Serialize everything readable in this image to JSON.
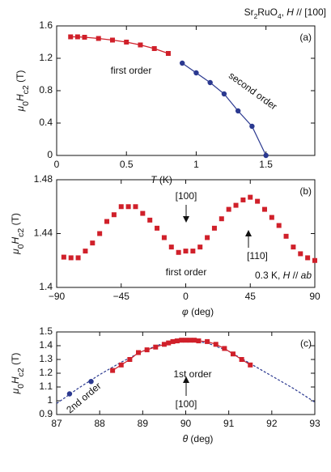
{
  "chart_data": [
    {
      "type": "line",
      "title": [
        "Sr",
        "2",
        "RuO",
        "4",
        ", ",
        "H",
        " // [100]"
      ],
      "panel_label": "(a)",
      "xlabel": [
        "T",
        " (K)"
      ],
      "ylabel": [
        "μ",
        "0",
        "H",
        "c2",
        " (T)"
      ],
      "xlim": [
        0,
        1.85
      ],
      "xticks": [
        0,
        0.5,
        1,
        1.5
      ],
      "ylim": [
        0,
        1.6
      ],
      "yticks": [
        0,
        0.4,
        0.8,
        1.2,
        1.6
      ],
      "series": [
        {
          "name": "first order",
          "color": "#d0202a",
          "marker": "square",
          "line": "solid",
          "x": [
            0.1,
            0.15,
            0.2,
            0.3,
            0.4,
            0.5,
            0.6,
            0.7,
            0.8
          ],
          "values": [
            1.465,
            1.465,
            1.46,
            1.445,
            1.425,
            1.4,
            1.365,
            1.32,
            1.26
          ]
        },
        {
          "name": "second order",
          "color": "#2b3990",
          "marker": "circle",
          "line": "solid",
          "x": [
            0.9,
            1.0,
            1.1,
            1.2,
            1.3,
            1.4,
            1.5
          ],
          "values": [
            1.14,
            1.02,
            0.9,
            0.76,
            0.55,
            0.36,
            0
          ]
        }
      ],
      "annotations": []
    },
    {
      "type": "scatter",
      "panel_label": "(b)",
      "xlabel": [
        "φ",
        " (deg)"
      ],
      "ylabel": [
        "μ",
        "0",
        "H",
        "c2",
        " (T)"
      ],
      "xlim": [
        -90,
        90
      ],
      "xticks": [
        {
          "value": -90,
          "label": "−90"
        },
        {
          "value": -45,
          "label": "−45"
        },
        0,
        45,
        90
      ],
      "ylim": [
        1.4,
        1.48
      ],
      "yticks": [
        1.4,
        1.44,
        1.48
      ],
      "series": [
        {
          "color": "#d0202a",
          "marker": "square",
          "line": "none",
          "x": [
            -85,
            -80,
            -75,
            -70,
            -65,
            -60,
            -55,
            -50,
            -45,
            -40,
            -35,
            -30,
            -25,
            -20,
            -15,
            -10,
            -5,
            0,
            5,
            10,
            15,
            20,
            25,
            30,
            35,
            40,
            45,
            50,
            55,
            60,
            65,
            70,
            75,
            80,
            85,
            90
          ],
          "values": [
            1.4225,
            1.422,
            1.422,
            1.427,
            1.433,
            1.44,
            1.449,
            1.454,
            1.46,
            1.46,
            1.46,
            1.455,
            1.45,
            1.444,
            1.437,
            1.43,
            1.426,
            1.427,
            1.427,
            1.43,
            1.437,
            1.444,
            1.451,
            1.458,
            1.461,
            1.465,
            1.467,
            1.464,
            1.458,
            1.452,
            1.446,
            1.438,
            1.43,
            1.425,
            1.422,
            1.42
          ]
        }
      ],
      "annotations": [
        [
          "[100]"
        ],
        [
          "[110]"
        ],
        [
          "first order"
        ],
        [
          "0.3 K, ",
          "H",
          " // ",
          "ab"
        ]
      ]
    },
    {
      "type": "line",
      "panel_label": "(c)",
      "xlabel": [
        "θ",
        " (deg)"
      ],
      "ylabel": [
        "μ",
        "0",
        "H",
        "c2",
        " (T)"
      ],
      "xlim": [
        87,
        93
      ],
      "xticks": [
        87,
        88,
        89,
        90,
        91,
        92,
        93
      ],
      "ylim": [
        0.9,
        1.5
      ],
      "yticks": [
        0.9,
        1,
        1.1,
        1.2,
        1.3,
        1.4,
        1.5
      ],
      "series": [
        {
          "color": "#2b3990",
          "marker": "none",
          "line": "dashed",
          "x": [
            87,
            87.5,
            88,
            88.5,
            89,
            89.5,
            90,
            90.5,
            91,
            91.5,
            92,
            92.5,
            93
          ],
          "values": [
            0.98,
            1.09,
            1.19,
            1.28,
            1.36,
            1.42,
            1.44,
            1.42,
            1.36,
            1.27,
            1.18,
            1.09,
            0.99
          ]
        },
        {
          "name": "1st order",
          "color": "#d0202a",
          "marker": "square",
          "line": "solid",
          "x": [
            88.3,
            88.5,
            88.7,
            88.9,
            89.1,
            89.3,
            89.5,
            89.6,
            89.7,
            89.8,
            89.9,
            90,
            90.1,
            90.2,
            90.3,
            90.5,
            90.7,
            90.9,
            91.1,
            91.3,
            91.5
          ],
          "values": [
            1.22,
            1.26,
            1.3,
            1.35,
            1.37,
            1.39,
            1.41,
            1.42,
            1.43,
            1.435,
            1.44,
            1.44,
            1.44,
            1.44,
            1.435,
            1.43,
            1.41,
            1.38,
            1.34,
            1.3,
            1.26
          ]
        },
        {
          "name": "2nd order",
          "color": "#2b3990",
          "marker": "circle",
          "line": "none",
          "x": [
            87.3,
            87.8
          ],
          "values": [
            1.05,
            1.14
          ]
        }
      ],
      "annotations": [
        [
          "[100]"
        ]
      ]
    }
  ]
}
